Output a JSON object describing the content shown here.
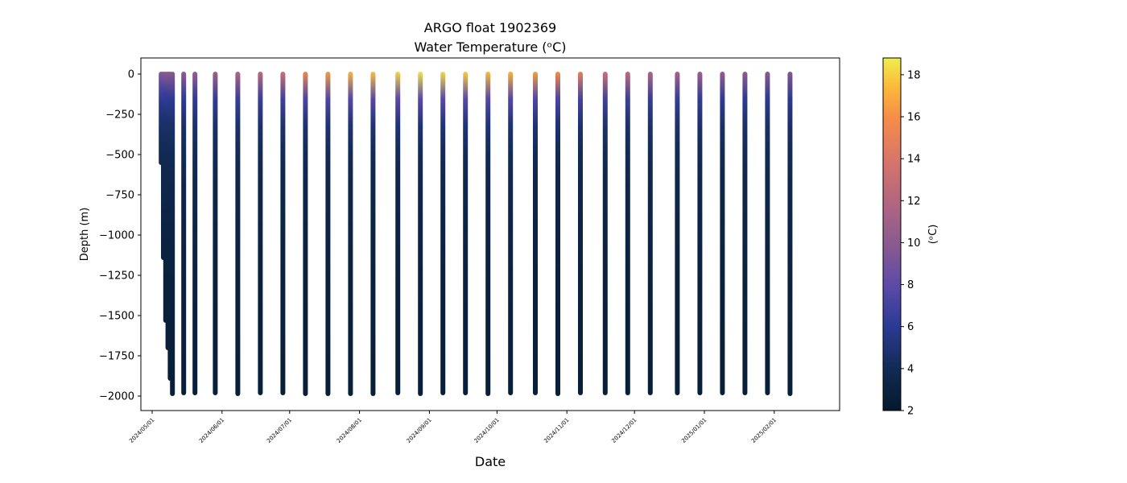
{
  "chart_data": {
    "type": "scatter",
    "title": "ARGO float 1902369",
    "subtitle": "Water Temperature (ᵒC)",
    "xlabel": "Date",
    "ylabel": "Depth (m)",
    "colorbar_label": "(ᵒC)",
    "xlim": [
      "2024-04-26",
      "2025-03-02"
    ],
    "ylim": [
      -2090,
      100
    ],
    "y_ticks": [
      0,
      -250,
      -500,
      -750,
      -1000,
      -1250,
      -1500,
      -1750,
      -2000
    ],
    "y_tick_labels": [
      "0",
      "−250",
      "−500",
      "−750",
      "−1000",
      "−1250",
      "−1500",
      "−1750",
      "−2000"
    ],
    "x_ticks": [
      "2024-05-01",
      "2024-06-01",
      "2024-07-01",
      "2024-08-01",
      "2024-09-01",
      "2024-10-01",
      "2024-11-01",
      "2024-12-01",
      "2025-01-01",
      "2025-02-01"
    ],
    "x_tick_labels": [
      "2024/05/01",
      "2024/06/01",
      "2024/07/01",
      "2024/08/01",
      "2024/09/01",
      "2024/10/01",
      "2024/11/01",
      "2024/12/01",
      "2025/01/01",
      "2025/02/01"
    ],
    "colorbar_range": [
      2,
      18.8
    ],
    "colorbar_ticks": [
      2,
      4,
      6,
      8,
      10,
      12,
      14,
      16,
      18
    ],
    "colormap": "thermal",
    "grid": false,
    "profiles": [
      {
        "date": "2024-05-05",
        "max_depth": -550,
        "surface_temp": 10.0
      },
      {
        "date": "2024-05-06",
        "max_depth": -1140,
        "surface_temp": 10.0
      },
      {
        "date": "2024-05-07",
        "max_depth": -1530,
        "surface_temp": 10.0
      },
      {
        "date": "2024-05-08",
        "max_depth": -1700,
        "surface_temp": 10.0
      },
      {
        "date": "2024-05-09",
        "max_depth": -1890,
        "surface_temp": 10.0
      },
      {
        "date": "2024-05-10",
        "max_depth": -1985,
        "surface_temp": 10.0
      },
      {
        "date": "2024-05-15",
        "max_depth": -1980,
        "surface_temp": 10.2
      },
      {
        "date": "2024-05-20",
        "max_depth": -1980,
        "surface_temp": 10.6
      },
      {
        "date": "2024-05-29",
        "max_depth": -1980,
        "surface_temp": 11.2
      },
      {
        "date": "2024-06-08",
        "max_depth": -1985,
        "surface_temp": 12.0
      },
      {
        "date": "2024-06-18",
        "max_depth": -1980,
        "surface_temp": 12.6
      },
      {
        "date": "2024-06-28",
        "max_depth": -1980,
        "surface_temp": 13.4
      },
      {
        "date": "2024-07-08",
        "max_depth": -1985,
        "surface_temp": 15.5
      },
      {
        "date": "2024-07-18",
        "max_depth": -1985,
        "surface_temp": 16.5
      },
      {
        "date": "2024-07-28",
        "max_depth": -1985,
        "surface_temp": 17.3
      },
      {
        "date": "2024-08-07",
        "max_depth": -1985,
        "surface_temp": 17.6
      },
      {
        "date": "2024-08-18",
        "max_depth": -1980,
        "surface_temp": 18.2
      },
      {
        "date": "2024-08-28",
        "max_depth": -1985,
        "surface_temp": 18.5
      },
      {
        "date": "2024-09-07",
        "max_depth": -1980,
        "surface_temp": 18.3
      },
      {
        "date": "2024-09-17",
        "max_depth": -1980,
        "surface_temp": 18.0
      },
      {
        "date": "2024-09-27",
        "max_depth": -1985,
        "surface_temp": 17.5
      },
      {
        "date": "2024-10-07",
        "max_depth": -1980,
        "surface_temp": 17.2
      },
      {
        "date": "2024-10-18",
        "max_depth": -1980,
        "surface_temp": 16.5
      },
      {
        "date": "2024-10-28",
        "max_depth": -1985,
        "surface_temp": 16.0
      },
      {
        "date": "2024-11-07",
        "max_depth": -1980,
        "surface_temp": 15.0
      },
      {
        "date": "2024-11-18",
        "max_depth": -1980,
        "surface_temp": 13.5
      },
      {
        "date": "2024-11-28",
        "max_depth": -1980,
        "surface_temp": 12.8
      },
      {
        "date": "2024-12-08",
        "max_depth": -1980,
        "surface_temp": 12.0
      },
      {
        "date": "2024-12-20",
        "max_depth": -1980,
        "surface_temp": 11.5
      },
      {
        "date": "2024-12-30",
        "max_depth": -1980,
        "surface_temp": 11.0
      },
      {
        "date": "2025-01-09",
        "max_depth": -1980,
        "surface_temp": 10.6
      },
      {
        "date": "2025-01-19",
        "max_depth": -1980,
        "surface_temp": 10.3
      },
      {
        "date": "2025-01-29",
        "max_depth": -1980,
        "surface_temp": 10.0
      },
      {
        "date": "2025-02-08",
        "max_depth": -1985,
        "surface_temp": 9.8
      }
    ]
  }
}
